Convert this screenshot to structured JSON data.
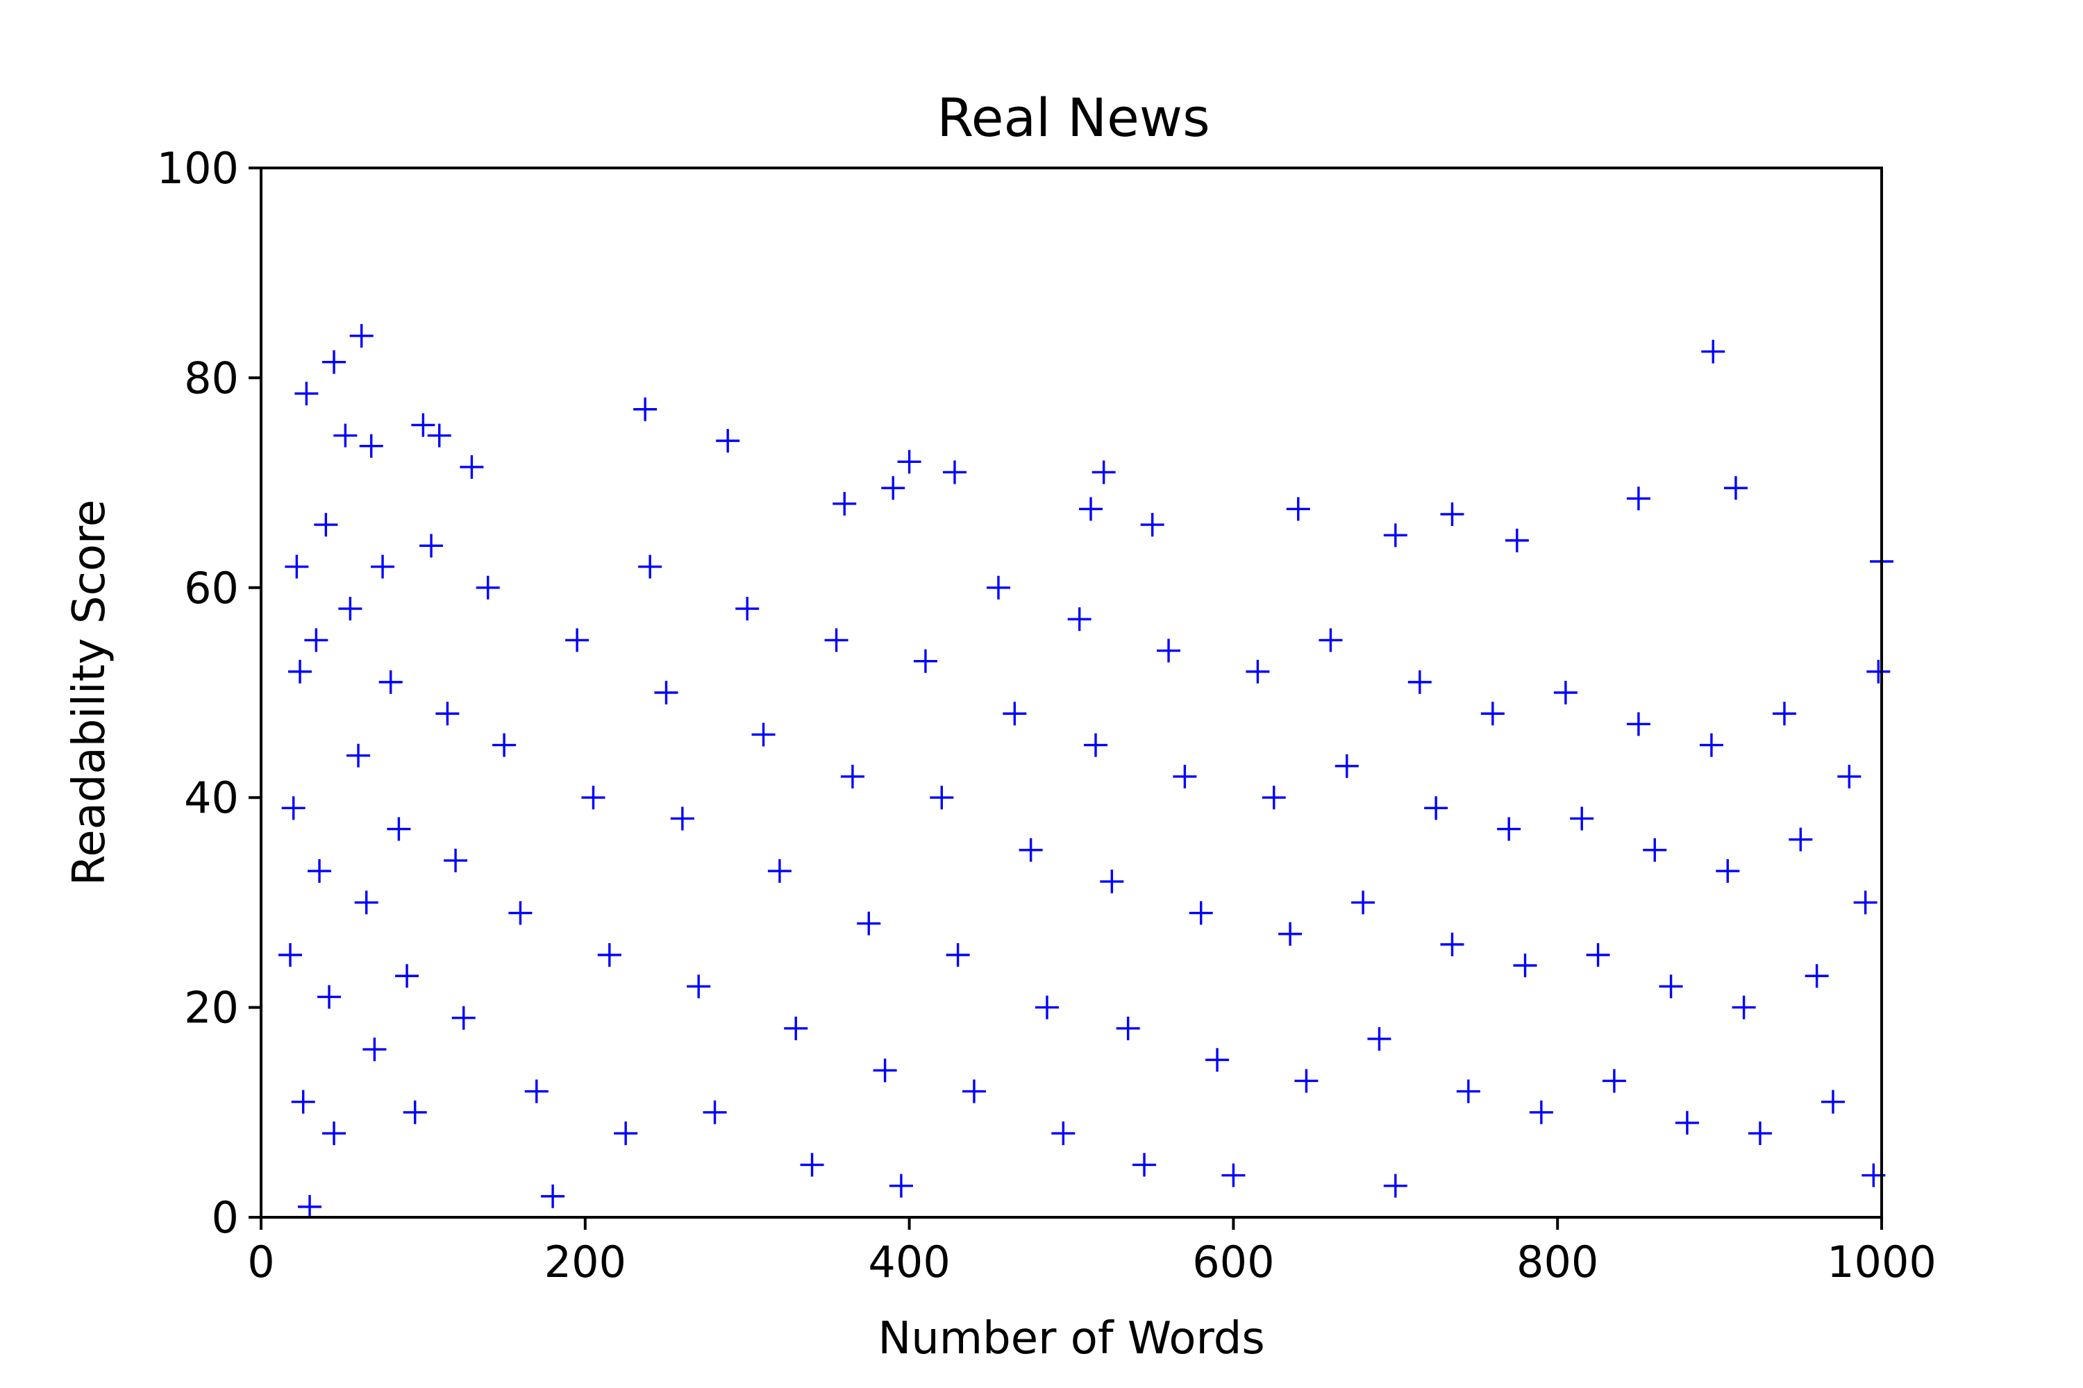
{
  "chart_data": {
    "type": "scatter",
    "title": "Real News",
    "xlabel": "Number of Words",
    "ylabel": "Readability Score",
    "xlim": [
      0,
      1000
    ],
    "ylim": [
      0,
      100
    ],
    "xticks": [
      "0",
      "200",
      "400",
      "600",
      "800",
      "1000"
    ],
    "yticks": [
      "0",
      "20",
      "40",
      "60",
      "80",
      "100"
    ],
    "marker": "+",
    "color": "#0000ff",
    "grid": false,
    "legend": "none",
    "series": [
      {
        "points": [
          [
            28,
            78.5
          ],
          [
            45,
            81.5
          ],
          [
            62,
            84
          ],
          [
            52,
            74.5
          ],
          [
            68,
            73.5
          ],
          [
            100,
            75.5
          ],
          [
            110,
            74.5
          ],
          [
            130,
            71.5
          ],
          [
            237,
            77
          ],
          [
            288,
            74
          ],
          [
            360,
            68
          ],
          [
            390,
            69.5
          ],
          [
            400,
            72
          ],
          [
            428,
            71
          ],
          [
            520,
            71
          ],
          [
            512,
            67.5
          ],
          [
            550,
            66
          ],
          [
            640,
            67.5
          ],
          [
            700,
            65
          ],
          [
            735,
            67
          ],
          [
            775,
            64.5
          ],
          [
            850,
            68.5
          ],
          [
            896,
            82.5
          ],
          [
            910,
            69.5
          ],
          [
            1000,
            62.5
          ],
          [
            22,
            62
          ],
          [
            24,
            52
          ],
          [
            20,
            39
          ],
          [
            18,
            25
          ],
          [
            26,
            11
          ],
          [
            30,
            1
          ],
          [
            34,
            55
          ],
          [
            36,
            33
          ],
          [
            40,
            66
          ],
          [
            42,
            21
          ],
          [
            45,
            8
          ],
          [
            55,
            58
          ],
          [
            60,
            44
          ],
          [
            65,
            30
          ],
          [
            70,
            16
          ],
          [
            75,
            62
          ],
          [
            80,
            51
          ],
          [
            85,
            37
          ],
          [
            90,
            23
          ],
          [
            95,
            10
          ],
          [
            105,
            64
          ],
          [
            115,
            48
          ],
          [
            120,
            34
          ],
          [
            125,
            19
          ],
          [
            140,
            60
          ],
          [
            150,
            45
          ],
          [
            160,
            29
          ],
          [
            170,
            12
          ],
          [
            180,
            2
          ],
          [
            195,
            55
          ],
          [
            205,
            40
          ],
          [
            215,
            25
          ],
          [
            225,
            8
          ],
          [
            240,
            62
          ],
          [
            250,
            50
          ],
          [
            260,
            38
          ],
          [
            270,
            22
          ],
          [
            280,
            10
          ],
          [
            300,
            58
          ],
          [
            310,
            46
          ],
          [
            320,
            33
          ],
          [
            330,
            18
          ],
          [
            340,
            5
          ],
          [
            355,
            55
          ],
          [
            365,
            42
          ],
          [
            375,
            28
          ],
          [
            385,
            14
          ],
          [
            395,
            3
          ],
          [
            410,
            53
          ],
          [
            420,
            40
          ],
          [
            430,
            25
          ],
          [
            440,
            12
          ],
          [
            455,
            60
          ],
          [
            465,
            48
          ],
          [
            475,
            35
          ],
          [
            485,
            20
          ],
          [
            495,
            8
          ],
          [
            505,
            57
          ],
          [
            515,
            45
          ],
          [
            525,
            32
          ],
          [
            535,
            18
          ],
          [
            545,
            5
          ],
          [
            560,
            54
          ],
          [
            570,
            42
          ],
          [
            580,
            29
          ],
          [
            590,
            15
          ],
          [
            600,
            4
          ],
          [
            615,
            52
          ],
          [
            625,
            40
          ],
          [
            635,
            27
          ],
          [
            645,
            13
          ],
          [
            660,
            55
          ],
          [
            670,
            43
          ],
          [
            680,
            30
          ],
          [
            690,
            17
          ],
          [
            700,
            3
          ],
          [
            715,
            51
          ],
          [
            725,
            39
          ],
          [
            735,
            26
          ],
          [
            745,
            12
          ],
          [
            760,
            48
          ],
          [
            770,
            37
          ],
          [
            780,
            24
          ],
          [
            790,
            10
          ],
          [
            805,
            50
          ],
          [
            815,
            38
          ],
          [
            825,
            25
          ],
          [
            835,
            13
          ],
          [
            850,
            47
          ],
          [
            860,
            35
          ],
          [
            870,
            22
          ],
          [
            880,
            9
          ],
          [
            895,
            45
          ],
          [
            905,
            33
          ],
          [
            915,
            20
          ],
          [
            925,
            8
          ],
          [
            940,
            48
          ],
          [
            950,
            36
          ],
          [
            960,
            23
          ],
          [
            970,
            11
          ],
          [
            980,
            42
          ],
          [
            990,
            30
          ],
          [
            995,
            4
          ],
          [
            998,
            52
          ]
        ]
      }
    ]
  }
}
